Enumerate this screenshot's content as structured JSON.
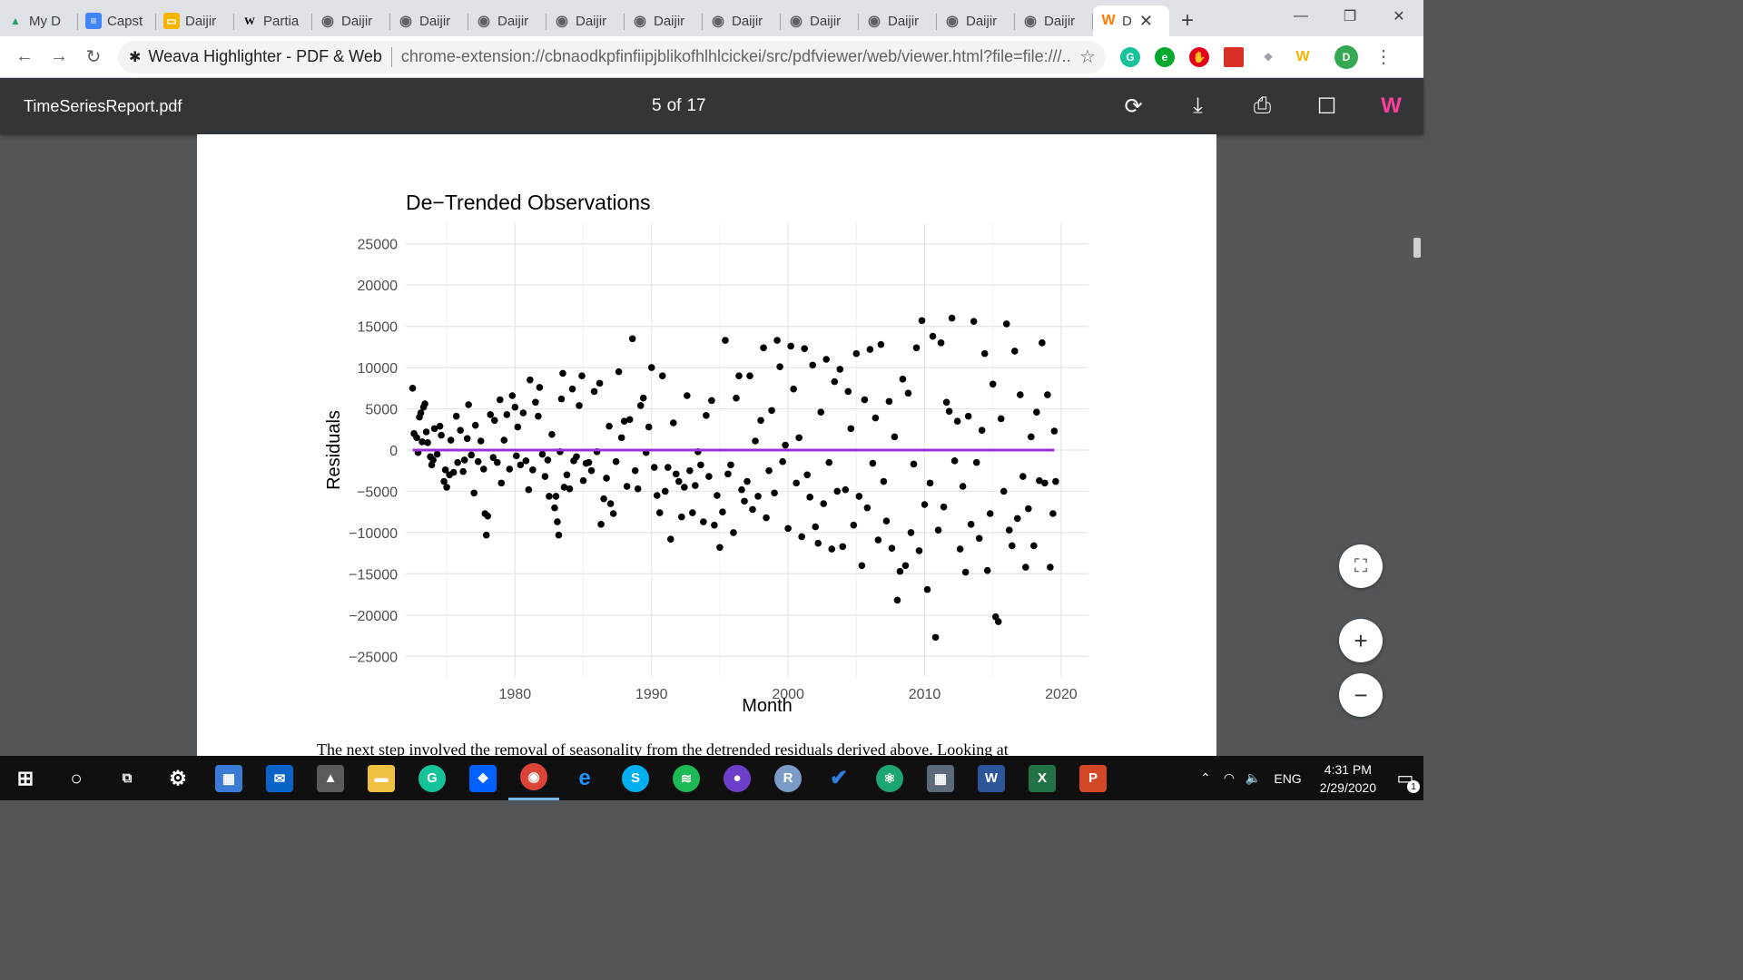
{
  "tabs": [
    {
      "label": "My D",
      "icon": "google-drive-icon",
      "color": "#1fa463"
    },
    {
      "label": "Capst",
      "icon": "google-docs-icon",
      "color": "#4285f4"
    },
    {
      "label": "Daijir",
      "icon": "google-slides-icon",
      "color": "#f4b400"
    },
    {
      "label": "Partia",
      "icon": "wikipedia-icon",
      "color": "#ffffff"
    },
    {
      "label": "Daijir",
      "icon": "globe-icon",
      "color": "#5f6368"
    },
    {
      "label": "Daijir",
      "icon": "globe-icon",
      "color": "#5f6368"
    },
    {
      "label": "Daijir",
      "icon": "globe-icon",
      "color": "#5f6368"
    },
    {
      "label": "Daijir",
      "icon": "globe-icon",
      "color": "#5f6368"
    },
    {
      "label": "Daijir",
      "icon": "globe-icon",
      "color": "#5f6368"
    },
    {
      "label": "Daijir",
      "icon": "globe-icon",
      "color": "#5f6368"
    },
    {
      "label": "Daijir",
      "icon": "globe-icon",
      "color": "#5f6368"
    },
    {
      "label": "Daijir",
      "icon": "globe-icon",
      "color": "#5f6368"
    },
    {
      "label": "Daijir",
      "icon": "globe-icon",
      "color": "#5f6368"
    },
    {
      "label": "Daijir",
      "icon": "globe-icon",
      "color": "#5f6368"
    }
  ],
  "active_tab": {
    "label": "D",
    "icon": "weava-icon"
  },
  "omnibox": {
    "extension_name": "Weava Highlighter - PDF & Web",
    "url": "chrome-extension://cbnaodkpfinfiipjblikofhlhlcickei/src/pdfviewer/web/viewer.html?file=file:///..."
  },
  "profile_initial": "D",
  "pdf": {
    "filename": "TimeSeriesReport.pdf",
    "current_page": "5",
    "of_label": "of",
    "total_pages": "17"
  },
  "chart_data": {
    "type": "scatter",
    "title": "De−Trended Observations",
    "xlabel": "Month",
    "ylabel": "Residuals",
    "x_ticks": [
      "1980",
      "1990",
      "2000",
      "2010",
      "2020"
    ],
    "y_ticks": [
      "25000",
      "20000",
      "15000",
      "10000",
      "5000",
      "0",
      "−5000",
      "−10000",
      "−15000",
      "−20000",
      "−25000"
    ],
    "xlim": [
      1972,
      2022
    ],
    "ylim": [
      -27500,
      27500
    ],
    "grid": true,
    "point_color": "#000000",
    "line": {
      "x": [
        1972.5,
        2019.5
      ],
      "y": [
        0,
        0
      ],
      "color": "#9b30d9"
    },
    "points": [
      [
        1972.5,
        7500
      ],
      [
        1972.6,
        2000
      ],
      [
        1972.8,
        1500
      ],
      [
        1972.9,
        -300
      ],
      [
        1973.0,
        4000
      ],
      [
        1973.1,
        4500
      ],
      [
        1973.2,
        1000
      ],
      [
        1973.3,
        5200
      ],
      [
        1973.4,
        5600
      ],
      [
        1973.5,
        2200
      ],
      [
        1973.6,
        900
      ],
      [
        1973.8,
        -800
      ],
      [
        1973.9,
        -1800
      ],
      [
        1974.0,
        -1200
      ],
      [
        1974.1,
        2600
      ],
      [
        1974.3,
        -500
      ],
      [
        1974.5,
        2900
      ],
      [
        1974.6,
        1800
      ],
      [
        1974.8,
        -3800
      ],
      [
        1974.9,
        -2400
      ],
      [
        1975.0,
        -4500
      ],
      [
        1975.2,
        -3000
      ],
      [
        1975.3,
        1200
      ],
      [
        1975.5,
        -2700
      ],
      [
        1975.7,
        4100
      ],
      [
        1975.8,
        -1500
      ],
      [
        1976.0,
        2400
      ],
      [
        1976.2,
        -2600
      ],
      [
        1976.3,
        -1200
      ],
      [
        1976.5,
        1400
      ],
      [
        1976.6,
        5500
      ],
      [
        1976.8,
        -600
      ],
      [
        1977.0,
        -5200
      ],
      [
        1977.1,
        3000
      ],
      [
        1977.3,
        -1400
      ],
      [
        1977.5,
        1100
      ],
      [
        1977.7,
        -2300
      ],
      [
        1977.8,
        -7700
      ],
      [
        1977.9,
        -10300
      ],
      [
        1978.0,
        -8000
      ],
      [
        1978.2,
        4300
      ],
      [
        1978.4,
        -900
      ],
      [
        1978.5,
        3600
      ],
      [
        1978.7,
        -1500
      ],
      [
        1978.9,
        6100
      ],
      [
        1979.0,
        -4000
      ],
      [
        1979.2,
        1200
      ],
      [
        1979.4,
        4300
      ],
      [
        1979.6,
        -2300
      ],
      [
        1979.8,
        6600
      ],
      [
        1980.0,
        5200
      ],
      [
        1980.1,
        -700
      ],
      [
        1980.2,
        2800
      ],
      [
        1980.4,
        -1800
      ],
      [
        1980.6,
        4500
      ],
      [
        1980.8,
        -1300
      ],
      [
        1981.0,
        -4800
      ],
      [
        1981.1,
        8500
      ],
      [
        1981.3,
        -2400
      ],
      [
        1981.5,
        5800
      ],
      [
        1981.7,
        4100
      ],
      [
        1981.8,
        7600
      ],
      [
        1982.0,
        -500
      ],
      [
        1982.2,
        -3200
      ],
      [
        1982.4,
        -1200
      ],
      [
        1982.5,
        -5600
      ],
      [
        1982.7,
        1900
      ],
      [
        1982.9,
        -7000
      ],
      [
        1983.0,
        -5600
      ],
      [
        1983.1,
        -8700
      ],
      [
        1983.2,
        -10300
      ],
      [
        1983.3,
        -200
      ],
      [
        1983.4,
        6200
      ],
      [
        1983.5,
        9300
      ],
      [
        1983.6,
        -4500
      ],
      [
        1983.8,
        -3000
      ],
      [
        1984.0,
        -4700
      ],
      [
        1984.2,
        7400
      ],
      [
        1984.3,
        -1300
      ],
      [
        1984.5,
        -800
      ],
      [
        1984.7,
        5400
      ],
      [
        1984.9,
        9000
      ],
      [
        1985.0,
        -3700
      ],
      [
        1985.2,
        -1600
      ],
      [
        1985.4,
        -1500
      ],
      [
        1985.6,
        -2500
      ],
      [
        1985.8,
        7100
      ],
      [
        1986.0,
        -200
      ],
      [
        1986.2,
        8100
      ],
      [
        1986.3,
        -9000
      ],
      [
        1986.5,
        -5900
      ],
      [
        1986.7,
        -3400
      ],
      [
        1986.9,
        2900
      ],
      [
        1987.0,
        -6500
      ],
      [
        1987.2,
        -7700
      ],
      [
        1987.4,
        -1400
      ],
      [
        1987.6,
        9500
      ],
      [
        1987.8,
        1500
      ],
      [
        1988.0,
        3500
      ],
      [
        1988.2,
        -4400
      ],
      [
        1988.4,
        3700
      ],
      [
        1988.6,
        13500
      ],
      [
        1988.8,
        -2500
      ],
      [
        1989.0,
        -4700
      ],
      [
        1989.2,
        5400
      ],
      [
        1989.4,
        6300
      ],
      [
        1989.6,
        -300
      ],
      [
        1989.8,
        2800
      ],
      [
        1990.0,
        10000
      ],
      [
        1990.2,
        -2100
      ],
      [
        1990.4,
        -5500
      ],
      [
        1990.6,
        -7600
      ],
      [
        1990.8,
        9000
      ],
      [
        1991.0,
        -5000
      ],
      [
        1991.2,
        -2100
      ],
      [
        1991.4,
        -10800
      ],
      [
        1991.6,
        3300
      ],
      [
        1991.8,
        -2900
      ],
      [
        1992.0,
        -3800
      ],
      [
        1992.2,
        -8100
      ],
      [
        1992.4,
        -4500
      ],
      [
        1992.6,
        6600
      ],
      [
        1992.8,
        -2500
      ],
      [
        1993.0,
        -7600
      ],
      [
        1993.2,
        -4300
      ],
      [
        1993.4,
        -200
      ],
      [
        1993.6,
        -1800
      ],
      [
        1993.8,
        -8700
      ],
      [
        1994.0,
        4200
      ],
      [
        1994.2,
        -3200
      ],
      [
        1994.4,
        6000
      ],
      [
        1994.6,
        -9100
      ],
      [
        1994.8,
        -5500
      ],
      [
        1995.0,
        -11800
      ],
      [
        1995.2,
        -7500
      ],
      [
        1995.4,
        13300
      ],
      [
        1995.6,
        -2900
      ],
      [
        1995.8,
        -1800
      ],
      [
        1996.0,
        -10000
      ],
      [
        1996.2,
        6300
      ],
      [
        1996.4,
        9000
      ],
      [
        1996.6,
        -4800
      ],
      [
        1996.8,
        -6200
      ],
      [
        1997.0,
        -3800
      ],
      [
        1997.2,
        9000
      ],
      [
        1997.4,
        -7200
      ],
      [
        1997.6,
        1100
      ],
      [
        1997.8,
        -5600
      ],
      [
        1998.0,
        3600
      ],
      [
        1998.2,
        12400
      ],
      [
        1998.4,
        -8200
      ],
      [
        1998.6,
        -2500
      ],
      [
        1998.8,
        4800
      ],
      [
        1999.0,
        -5200
      ],
      [
        1999.2,
        13300
      ],
      [
        1999.4,
        10100
      ],
      [
        1999.6,
        -1400
      ],
      [
        1999.8,
        600
      ],
      [
        2000.0,
        -9500
      ],
      [
        2000.2,
        12600
      ],
      [
        2000.4,
        7400
      ],
      [
        2000.6,
        -4000
      ],
      [
        2000.8,
        1500
      ],
      [
        2001.0,
        -10500
      ],
      [
        2001.2,
        12300
      ],
      [
        2001.4,
        -3000
      ],
      [
        2001.6,
        -5700
      ],
      [
        2001.8,
        10300
      ],
      [
        2002.0,
        -9300
      ],
      [
        2002.2,
        -11300
      ],
      [
        2002.4,
        4600
      ],
      [
        2002.6,
        -6500
      ],
      [
        2002.8,
        11000
      ],
      [
        2003.0,
        -1500
      ],
      [
        2003.2,
        -12000
      ],
      [
        2003.4,
        8300
      ],
      [
        2003.6,
        -5000
      ],
      [
        2003.8,
        9800
      ],
      [
        2004.0,
        -11700
      ],
      [
        2004.2,
        -4800
      ],
      [
        2004.4,
        7100
      ],
      [
        2004.6,
        2600
      ],
      [
        2004.8,
        -9100
      ],
      [
        2005.0,
        11700
      ],
      [
        2005.2,
        -5600
      ],
      [
        2005.4,
        -14000
      ],
      [
        2005.6,
        6100
      ],
      [
        2005.8,
        -7000
      ],
      [
        2006.0,
        12200
      ],
      [
        2006.2,
        -1600
      ],
      [
        2006.4,
        3900
      ],
      [
        2006.6,
        -10900
      ],
      [
        2006.8,
        12800
      ],
      [
        2007.0,
        -3800
      ],
      [
        2007.2,
        -8600
      ],
      [
        2007.4,
        5900
      ],
      [
        2007.6,
        -11900
      ],
      [
        2007.8,
        1600
      ],
      [
        2008.0,
        -18200
      ],
      [
        2008.2,
        -14700
      ],
      [
        2008.4,
        8600
      ],
      [
        2008.6,
        -14000
      ],
      [
        2008.8,
        6900
      ],
      [
        2009.0,
        -10000
      ],
      [
        2009.2,
        -1700
      ],
      [
        2009.4,
        12400
      ],
      [
        2009.6,
        -12200
      ],
      [
        2009.8,
        15700
      ],
      [
        2010.0,
        -6600
      ],
      [
        2010.2,
        -16900
      ],
      [
        2010.4,
        -4000
      ],
      [
        2010.6,
        13800
      ],
      [
        2010.8,
        -22700
      ],
      [
        2011.0,
        -9700
      ],
      [
        2011.2,
        13000
      ],
      [
        2011.4,
        -6900
      ],
      [
        2011.6,
        5800
      ],
      [
        2011.8,
        4700
      ],
      [
        2012.0,
        16000
      ],
      [
        2012.2,
        -1300
      ],
      [
        2012.4,
        3500
      ],
      [
        2012.6,
        -12000
      ],
      [
        2012.8,
        -4400
      ],
      [
        2013.0,
        -14800
      ],
      [
        2013.2,
        4100
      ],
      [
        2013.4,
        -9000
      ],
      [
        2013.6,
        15600
      ],
      [
        2013.8,
        -1500
      ],
      [
        2014.0,
        -10700
      ],
      [
        2014.2,
        2400
      ],
      [
        2014.4,
        11700
      ],
      [
        2014.6,
        -14600
      ],
      [
        2014.8,
        -7700
      ],
      [
        2015.0,
        8000
      ],
      [
        2015.2,
        -20200
      ],
      [
        2015.4,
        -20800
      ],
      [
        2015.6,
        3800
      ],
      [
        2015.8,
        -5000
      ],
      [
        2016.0,
        15300
      ],
      [
        2016.2,
        -9700
      ],
      [
        2016.4,
        -11600
      ],
      [
        2016.6,
        12000
      ],
      [
        2016.8,
        -8300
      ],
      [
        2017.0,
        6700
      ],
      [
        2017.2,
        -3200
      ],
      [
        2017.4,
        -14200
      ],
      [
        2017.6,
        -7100
      ],
      [
        2017.8,
        1600
      ],
      [
        2018.0,
        -11600
      ],
      [
        2018.2,
        4600
      ],
      [
        2018.4,
        -3700
      ],
      [
        2018.6,
        13000
      ],
      [
        2018.8,
        -4000
      ],
      [
        2019.0,
        6700
      ],
      [
        2019.2,
        -14200
      ],
      [
        2019.4,
        -7700
      ],
      [
        2019.5,
        2300
      ],
      [
        2019.6,
        -3800
      ]
    ]
  },
  "body_text": "The next step involved the removal of seasonality from the detrended residuals derived above. Looking at",
  "zoom": {
    "fit_label": "⛶",
    "plus_label": "+",
    "minus_label": "−"
  },
  "taskbar": {
    "lang": "ENG",
    "time": "4:31 PM",
    "date": "2/29/2020",
    "notification_count": "1"
  }
}
